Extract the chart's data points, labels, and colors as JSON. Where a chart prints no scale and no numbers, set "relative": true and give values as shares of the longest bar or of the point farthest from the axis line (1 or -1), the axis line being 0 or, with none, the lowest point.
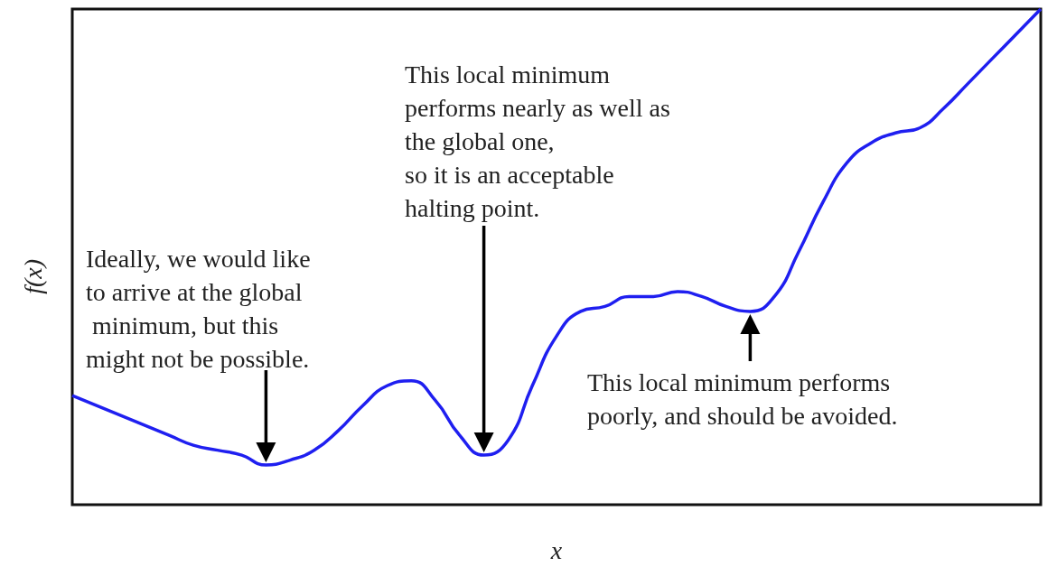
{
  "chart_data": {
    "type": "line",
    "xlabel": "x",
    "ylabel": "f(x)",
    "relative": true,
    "marker": "none",
    "color": "#1f1ff0",
    "annotations": [
      "Ideally, we would like\nto arrive at the global\n minimum, but this\nmight not be possible.",
      "This local minimum\nperforms nearly as well as\nthe global one,\nso it is an acceptable\nhalting point.",
      "This local minimum performs\npoorly, and should be avoided."
    ],
    "categories": [
      null,
      null,
      null,
      null,
      null,
      null,
      null,
      null,
      null,
      null,
      null,
      null,
      null,
      null,
      null,
      null,
      null,
      null,
      null,
      null,
      null,
      null,
      null,
      null,
      null,
      null,
      null,
      null,
      null,
      null,
      null,
      null,
      null,
      null,
      null,
      null,
      null,
      null,
      null,
      null,
      null
    ],
    "values": [
      0.22,
      0.2,
      0.18,
      0.16,
      0.14,
      0.12,
      0.11,
      0.1,
      0.08,
      0.09,
      0.11,
      0.15,
      0.2,
      0.24,
      0.25,
      0.21,
      0.14,
      0.1,
      0.13,
      0.24,
      0.34,
      0.39,
      0.4,
      0.42,
      0.42,
      0.43,
      0.42,
      0.4,
      0.39,
      0.42,
      0.51,
      0.61,
      0.69,
      0.73,
      0.75,
      0.76,
      0.8,
      0.85,
      0.9,
      0.95,
      1
    ]
  }
}
